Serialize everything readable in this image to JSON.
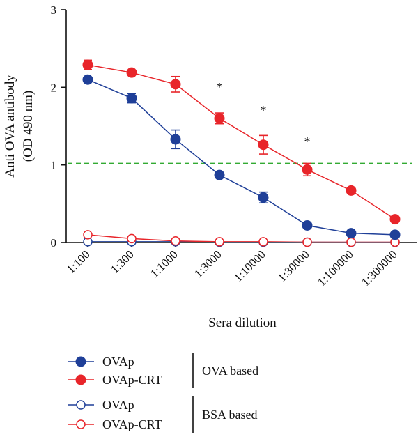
{
  "chart_data": {
    "type": "line",
    "title": "",
    "xlabel": "Sera dilution",
    "ylabel": "Anti OVA antibody",
    "ylabel_unit": "(OD 490 nm)",
    "categories": [
      "1:100",
      "1:300",
      "1:1000",
      "1:3000",
      "1:10000",
      "1:30000",
      "1:100000",
      "1:300000"
    ],
    "ylim": [
      0,
      3
    ],
    "yticks": [
      "0",
      "1",
      "2",
      "3"
    ],
    "cutoff_line": {
      "y": 1.02,
      "color": "#33aa33",
      "style": "dashed"
    },
    "significance": [
      {
        "category_index": 3,
        "label": "*",
        "y": 2.02
      },
      {
        "category_index": 4,
        "label": "*",
        "y": 1.72
      },
      {
        "category_index": 5,
        "label": "*",
        "y": 1.32
      }
    ],
    "series": [
      {
        "name": "OVAp",
        "group": "OVA based",
        "color": "#1f3f98",
        "marker": "filled-circle",
        "values": [
          2.1,
          1.86,
          1.33,
          0.87,
          0.58,
          0.22,
          0.12,
          0.1
        ],
        "errors": [
          0.03,
          0.06,
          0.12,
          0.03,
          0.07,
          0.02,
          0.02,
          0.02
        ]
      },
      {
        "name": "OVAp-CRT",
        "group": "OVA based",
        "color": "#e8252a",
        "marker": "filled-circle",
        "values": [
          2.29,
          2.19,
          2.04,
          1.6,
          1.26,
          0.94,
          0.67,
          0.3
        ],
        "errors": [
          0.06,
          0.03,
          0.1,
          0.07,
          0.12,
          0.08,
          0.02,
          0.02
        ]
      },
      {
        "name": "OVAp",
        "group": "BSA based",
        "color": "#1f3f98",
        "marker": "open-circle",
        "values": [
          0.01,
          0.01,
          0.01,
          0.005,
          0.005,
          0.005,
          0.003,
          0.003
        ],
        "errors": [
          0,
          0,
          0,
          0,
          0,
          0,
          0,
          0
        ]
      },
      {
        "name": "OVAp-CRT",
        "group": "BSA based",
        "color": "#e8252a",
        "marker": "open-circle",
        "values": [
          0.1,
          0.05,
          0.02,
          0.01,
          0.01,
          0.005,
          0.005,
          0.005
        ],
        "errors": [
          0,
          0,
          0,
          0,
          0,
          0,
          0,
          0
        ]
      }
    ],
    "legend": {
      "placement": "bottom-left",
      "groups": [
        {
          "label": "OVA based",
          "series_indices": [
            0,
            1
          ]
        },
        {
          "label": "BSA based",
          "series_indices": [
            2,
            3
          ]
        }
      ]
    }
  }
}
